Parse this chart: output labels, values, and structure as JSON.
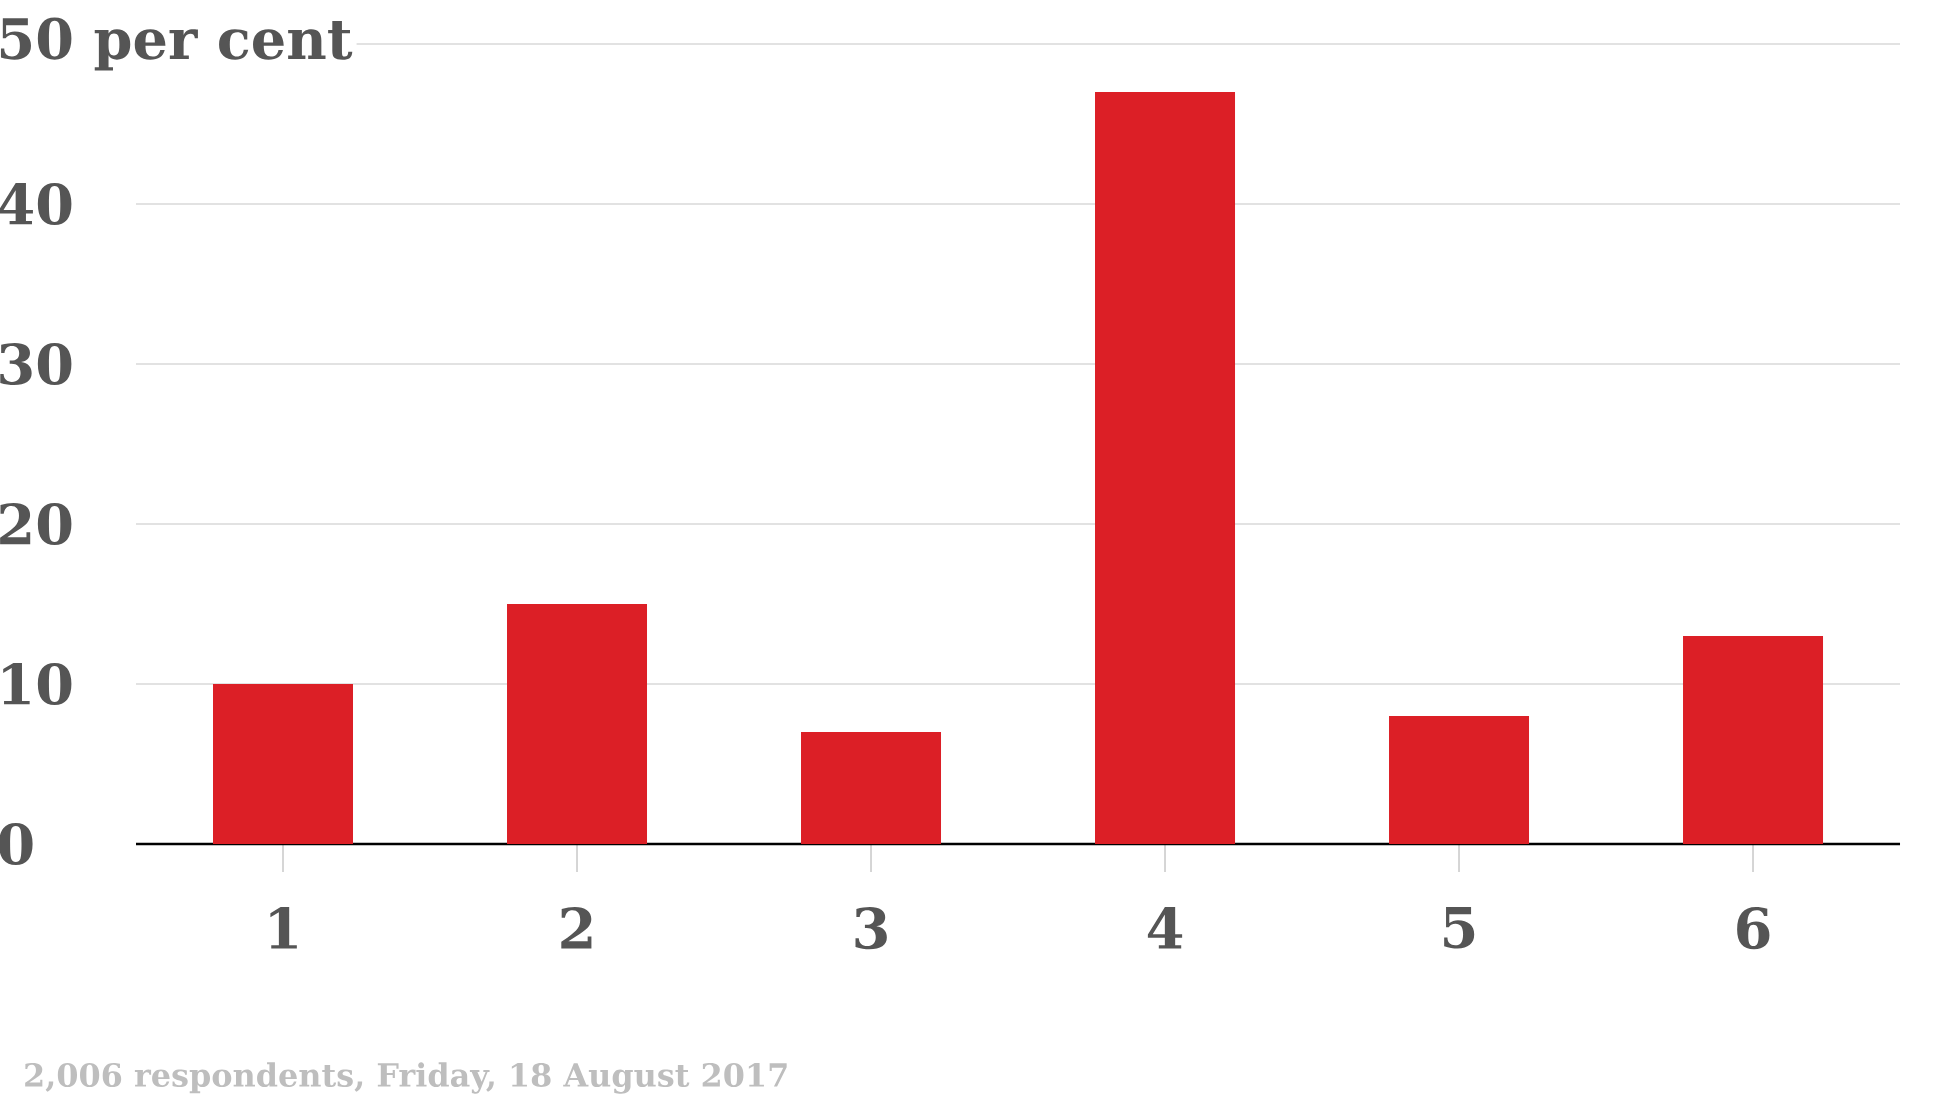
{
  "chart_data": {
    "type": "bar",
    "categories": [
      "1",
      "2",
      "3",
      "4",
      "5",
      "6"
    ],
    "values": [
      10,
      15,
      7,
      47,
      8,
      13
    ],
    "color": "#dc1f26",
    "ylim": [
      0,
      50
    ],
    "yticks": [
      0,
      10,
      20,
      30,
      40,
      {
        "value": 50,
        "label": "50 per cent"
      }
    ],
    "grid": "y",
    "annotations": [
      "2,006 respondents, Friday, 18 August 2017"
    ]
  }
}
